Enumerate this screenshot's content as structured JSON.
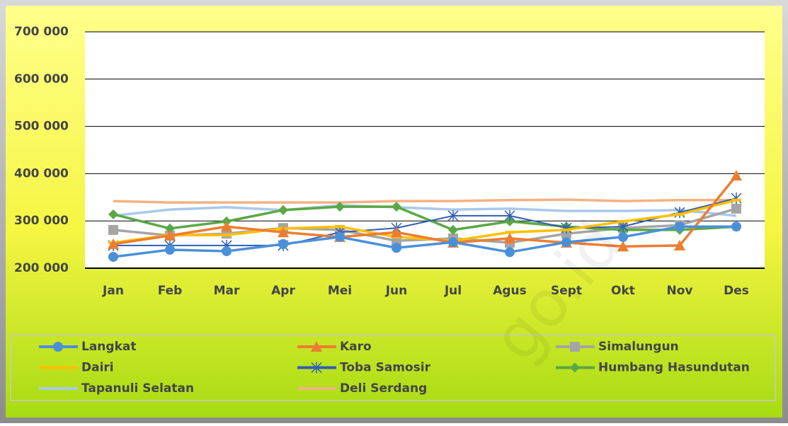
{
  "chart_data": {
    "type": "line",
    "categories": [
      "Jan",
      "Feb",
      "Mar",
      "Apr",
      "Mei",
      "Jun",
      "Jul",
      "Agus",
      "Sept",
      "Okt",
      "Nov",
      "Des"
    ],
    "ylim": [
      200000,
      700000
    ],
    "yticks": [
      {
        "value": 200000,
        "label": "200 000"
      },
      {
        "value": 300000,
        "label": "300 000"
      },
      {
        "value": 400000,
        "label": "400 000"
      },
      {
        "value": 500000,
        "label": "500 000"
      },
      {
        "value": 600000,
        "label": "600 000"
      },
      {
        "value": 700000,
        "label": "700 000"
      }
    ],
    "grid": true,
    "legend": "bottom",
    "watermark": "go.id",
    "series": [
      {
        "name": "Langkat",
        "color": "#4a90d9",
        "marker": "circle",
        "values": [
          224000,
          239000,
          236000,
          251000,
          266000,
          243000,
          255000,
          234000,
          255000,
          266000,
          288000,
          288000
        ]
      },
      {
        "name": "Karo",
        "color": "#ed7d31",
        "marker": "triangle",
        "values": [
          251000,
          269000,
          288000,
          276000,
          266000,
          276000,
          254000,
          263000,
          254000,
          246000,
          248000,
          396000
        ]
      },
      {
        "name": "Simalungun",
        "color": "#a5a5a5",
        "marker": "square",
        "values": [
          281000,
          269000,
          273000,
          285000,
          281000,
          258000,
          263000,
          254000,
          273000,
          285000,
          291000,
          326000
        ]
      },
      {
        "name": "Dairi",
        "color": "#ffc000",
        "marker": "dash",
        "values": [
          254000,
          270000,
          270000,
          284000,
          288000,
          266000,
          258000,
          276000,
          281000,
          299000,
          314000,
          344000
        ]
      },
      {
        "name": "Toba Samosir",
        "color": "#2f5fb3",
        "marker": "star",
        "values": [
          248000,
          248000,
          248000,
          248000,
          276000,
          285000,
          311000,
          311000,
          285000,
          288000,
          318000,
          348000
        ]
      },
      {
        "name": "Humbang Hasundutan",
        "color": "#5aa845",
        "marker": "diamond",
        "values": [
          314000,
          284000,
          299000,
          323000,
          330000,
          330000,
          281000,
          299000,
          288000,
          281000,
          281000,
          288000
        ]
      },
      {
        "name": "Tapanuli Selatan",
        "color": "#a9c8ec",
        "marker": "none",
        "values": [
          311000,
          324000,
          329000,
          323000,
          333000,
          329000,
          324000,
          326000,
          321000,
          321000,
          323000,
          311000
        ]
      },
      {
        "name": "Deli Serdang",
        "color": "#f4b183",
        "marker": "none",
        "values": [
          342000,
          339000,
          339000,
          339000,
          339000,
          342000,
          342000,
          344000,
          345000,
          342000,
          344000,
          344000
        ]
      }
    ]
  }
}
